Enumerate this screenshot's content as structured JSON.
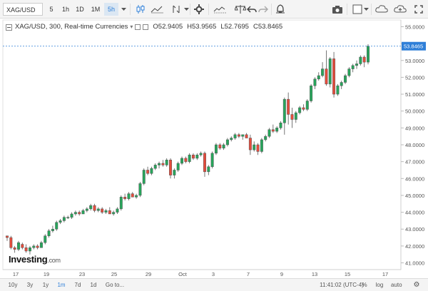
{
  "toolbar": {
    "symbol": "XAG/USD",
    "intervals": [
      "5",
      "1h",
      "1D",
      "1M",
      "5h"
    ],
    "active_interval": "5h"
  },
  "legend": {
    "title": "XAG/USD, 300, Real-time Currencies",
    "open": "O52.9405",
    "high": "H53.9565",
    "low": "L52.7695",
    "close": "C53.8465"
  },
  "price_axis": {
    "ticks": [
      "55.0000",
      "54.0000",
      "53.0000",
      "52.0000",
      "51.0000",
      "50.0000",
      "49.0000",
      "48.0000",
      "47.0000",
      "46.0000",
      "45.0000",
      "44.0000",
      "43.0000",
      "42.0000",
      "41.0000"
    ],
    "current_price": "53.8465"
  },
  "time_axis": {
    "ticks": [
      "17",
      "19",
      "23",
      "25",
      "29",
      "Oct",
      "3",
      "7",
      "9",
      "13",
      "15",
      "17"
    ]
  },
  "bottombar": {
    "ranges": [
      "10y",
      "3y",
      "1y",
      "1m",
      "7d",
      "1d"
    ],
    "active_range": "1m",
    "goto": "Go to...",
    "clock": "11:41:02 (UTC-4)",
    "percent": "%",
    "log": "log",
    "auto": "auto"
  },
  "logo": {
    "brand": "Investing",
    "suffix": ".com"
  },
  "colors": {
    "up": "#26a65b",
    "down": "#e74c3c",
    "accent": "#2f7fd8",
    "price_line": "#2f7fd8"
  },
  "icons": [
    "camera-icon",
    "fullscreen-icon",
    "candles-icon",
    "indicators-icon",
    "compare-icon",
    "undo-icon",
    "redo-icon",
    "alert-icon",
    "settings-icon",
    "cloud-icon"
  ],
  "chart_data": {
    "type": "candlestick",
    "ylim": [
      40.6,
      55.4
    ],
    "candles": [
      [
        42.6,
        42.6,
        42.3,
        42.5
      ],
      [
        42.5,
        42.6,
        41.8,
        41.9
      ],
      [
        41.9,
        42.0,
        41.6,
        41.8
      ],
      [
        41.8,
        42.3,
        41.7,
        42.2
      ],
      [
        42.1,
        42.2,
        41.8,
        41.9
      ],
      [
        41.9,
        42.1,
        41.6,
        41.7
      ],
      [
        41.7,
        42.0,
        41.5,
        41.9
      ],
      [
        41.9,
        42.1,
        41.8,
        42.0
      ],
      [
        42.0,
        42.1,
        41.8,
        41.9
      ],
      [
        41.9,
        42.3,
        41.9,
        42.2
      ],
      [
        42.2,
        42.7,
        42.1,
        42.6
      ],
      [
        42.6,
        43.0,
        42.5,
        42.9
      ],
      [
        42.9,
        43.2,
        42.8,
        43.0
      ],
      [
        43.0,
        43.5,
        42.9,
        43.4
      ],
      [
        43.4,
        43.6,
        43.3,
        43.5
      ],
      [
        43.5,
        43.8,
        43.4,
        43.7
      ],
      [
        43.7,
        43.8,
        43.6,
        43.7
      ],
      [
        43.7,
        44.0,
        43.6,
        43.9
      ],
      [
        43.9,
        44.1,
        43.8,
        44.0
      ],
      [
        44.0,
        44.1,
        43.8,
        43.9
      ],
      [
        43.9,
        44.2,
        43.9,
        44.1
      ],
      [
        44.1,
        44.3,
        44.0,
        44.2
      ],
      [
        44.2,
        44.5,
        44.1,
        44.4
      ],
      [
        44.4,
        44.5,
        44.0,
        44.1
      ],
      [
        44.1,
        44.3,
        44.0,
        44.2
      ],
      [
        44.2,
        44.3,
        43.9,
        44.0
      ],
      [
        44.0,
        44.2,
        43.9,
        44.1
      ],
      [
        44.1,
        44.3,
        43.9,
        43.9
      ],
      [
        43.9,
        44.1,
        43.8,
        44.0
      ],
      [
        44.0,
        44.3,
        43.9,
        44.2
      ],
      [
        44.2,
        45.0,
        44.1,
        44.9
      ],
      [
        44.9,
        45.1,
        44.7,
        44.8
      ],
      [
        44.8,
        45.2,
        44.7,
        45.1
      ],
      [
        45.1,
        45.2,
        44.9,
        44.9
      ],
      [
        44.9,
        45.1,
        44.8,
        45.0
      ],
      [
        45.0,
        45.8,
        44.9,
        45.7
      ],
      [
        45.7,
        46.6,
        45.6,
        46.5
      ],
      [
        46.5,
        46.7,
        46.2,
        46.3
      ],
      [
        46.3,
        46.7,
        46.2,
        46.6
      ],
      [
        46.6,
        46.9,
        46.5,
        46.8
      ],
      [
        46.8,
        47.0,
        46.6,
        46.9
      ],
      [
        46.9,
        47.1,
        46.7,
        46.8
      ],
      [
        46.8,
        47.2,
        46.7,
        47.1
      ],
      [
        47.1,
        47.2,
        46.0,
        46.2
      ],
      [
        46.2,
        46.6,
        46.0,
        46.5
      ],
      [
        46.5,
        47.0,
        46.4,
        46.9
      ],
      [
        46.9,
        47.3,
        46.8,
        47.2
      ],
      [
        47.2,
        47.3,
        46.9,
        47.0
      ],
      [
        47.0,
        47.5,
        46.9,
        47.4
      ],
      [
        47.4,
        47.5,
        47.1,
        47.2
      ],
      [
        47.2,
        47.5,
        47.1,
        47.4
      ],
      [
        47.4,
        47.6,
        47.3,
        47.5
      ],
      [
        47.5,
        47.6,
        46.1,
        46.4
      ],
      [
        46.4,
        46.8,
        46.2,
        46.7
      ],
      [
        46.7,
        47.6,
        46.6,
        47.5
      ],
      [
        47.5,
        48.1,
        47.4,
        48.0
      ],
      [
        48.0,
        48.1,
        47.7,
        47.8
      ],
      [
        47.8,
        48.1,
        47.7,
        48.0
      ],
      [
        48.0,
        48.4,
        47.9,
        48.3
      ],
      [
        48.3,
        48.5,
        48.2,
        48.4
      ],
      [
        48.4,
        48.7,
        48.3,
        48.6
      ],
      [
        48.6,
        48.7,
        48.4,
        48.5
      ],
      [
        48.5,
        48.6,
        48.3,
        48.6
      ],
      [
        48.6,
        48.7,
        48.4,
        48.4
      ],
      [
        48.4,
        48.6,
        47.4,
        47.7
      ],
      [
        47.7,
        48.2,
        47.6,
        48.0
      ],
      [
        48.0,
        48.1,
        47.4,
        47.6
      ],
      [
        47.6,
        48.4,
        47.5,
        48.3
      ],
      [
        48.3,
        48.6,
        48.2,
        48.5
      ],
      [
        48.5,
        49.0,
        48.4,
        48.9
      ],
      [
        48.9,
        49.2,
        48.7,
        48.8
      ],
      [
        48.8,
        49.1,
        48.7,
        49.0
      ],
      [
        49.0,
        49.4,
        48.9,
        49.3
      ],
      [
        49.3,
        50.8,
        48.6,
        50.7
      ],
      [
        50.7,
        51.1,
        49.2,
        49.8
      ],
      [
        49.8,
        50.2,
        49.0,
        49.5
      ],
      [
        49.5,
        50.0,
        49.3,
        49.9
      ],
      [
        49.9,
        50.3,
        49.8,
        50.2
      ],
      [
        50.2,
        50.4,
        50.0,
        50.1
      ],
      [
        50.1,
        50.7,
        50.0,
        50.6
      ],
      [
        50.6,
        51.6,
        50.5,
        51.5
      ],
      [
        51.5,
        52.0,
        51.3,
        51.9
      ],
      [
        51.9,
        52.3,
        51.8,
        52.1
      ],
      [
        52.1,
        52.9,
        52.0,
        52.5
      ],
      [
        52.5,
        53.6,
        51.5,
        51.6
      ],
      [
        51.6,
        53.2,
        51.4,
        53.1
      ],
      [
        53.1,
        53.5,
        50.8,
        51.0
      ],
      [
        51.0,
        51.6,
        50.9,
        51.5
      ],
      [
        51.5,
        51.8,
        51.3,
        51.7
      ],
      [
        51.7,
        52.2,
        51.6,
        52.1
      ],
      [
        52.1,
        52.6,
        52.0,
        52.5
      ],
      [
        52.5,
        52.8,
        52.3,
        52.7
      ],
      [
        52.7,
        53.0,
        52.5,
        52.8
      ],
      [
        52.8,
        53.3,
        52.7,
        53.2
      ],
      [
        53.2,
        53.3,
        52.6,
        52.9
      ],
      [
        52.9,
        53.96,
        52.77,
        53.85
      ]
    ]
  }
}
